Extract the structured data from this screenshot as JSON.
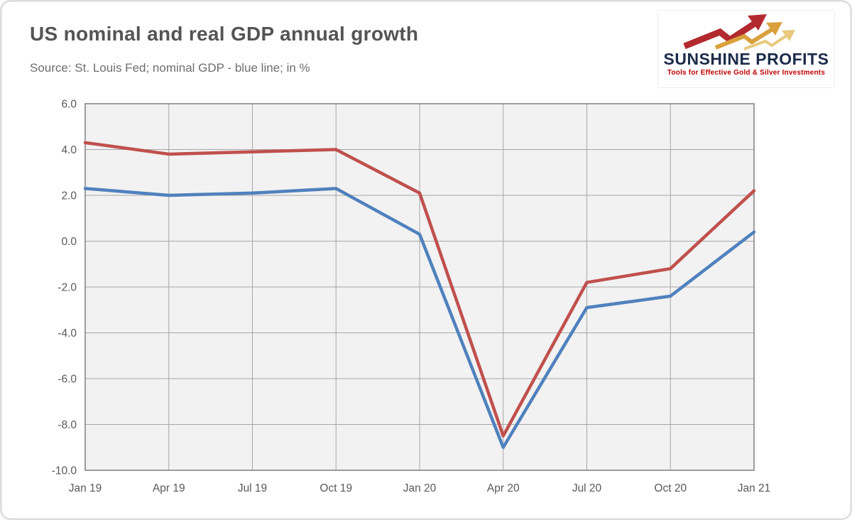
{
  "header": {
    "title": "US nominal and real GDP annual growth",
    "subtitle": "Source: St. Louis Fed; nominal GDP - blue line; in %"
  },
  "logo": {
    "name": "SUNSHINE PROFITS",
    "tagline": "Tools for Effective Gold & Silver Investments",
    "brand_color": "#1c2b4a",
    "tagline_color": "#c00000",
    "arrow_colors": [
      "#b2292e",
      "#d9a03c",
      "#e8c97e"
    ]
  },
  "chart_data": {
    "type": "line",
    "title": "US nominal and real GDP annual growth",
    "xlabel": "",
    "ylabel": "",
    "categories": [
      "Jan 19",
      "Apr 19",
      "Jul 19",
      "Oct 19",
      "Jan 20",
      "Apr 20",
      "Jul 20",
      "Oct 20",
      "Jan 21"
    ],
    "series": [
      {
        "name": "real GDP (red line)",
        "color": "#c0504d",
        "values": [
          4.3,
          3.8,
          3.9,
          4.0,
          2.1,
          -8.5,
          -1.8,
          -1.2,
          2.2
        ]
      },
      {
        "name": "nominal GDP (blue line)",
        "color": "#4f81bd",
        "values": [
          2.3,
          2.0,
          2.1,
          2.3,
          0.3,
          -9.0,
          -2.9,
          -2.4,
          0.4
        ]
      }
    ],
    "ylim": [
      -10.0,
      6.0
    ],
    "ytick_step": 2.0,
    "ytick_format_decimals": 1,
    "grid": true,
    "legend_position": "none",
    "plot_bg": "#f2f2f2",
    "grid_color": "#a6a6a6",
    "border_color": "#7f7f7f",
    "tick_label_color": "#595959"
  }
}
